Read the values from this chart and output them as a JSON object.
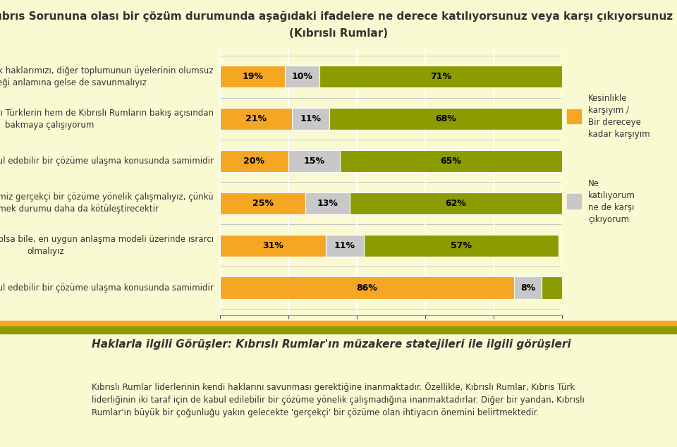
{
  "title_line1": "Kıbrıs Sorununa olası bir çözüm durumunda aşağıdaki ifadelere ne derece katılıyorsunuz veya karşı çıkıyorsunuz  ?",
  "title_line2": "(Kıbrıslı Rumlar)",
  "background_color": "#FAFAD2",
  "chart_background": "#FAFAD2",
  "bar_labels": [
    "Kıbrıs Rum toplumu olarak haklarımızı, diğer toplumunun üyelerinin olumsuz\netkileneceği anlamına gelse de savunmalıyız",
    "Kıbrıs Sorununa hem Kıbrıslı Türklerin hem de Kıbrıslı Rumların bakış açısından\nbakmaya çalışıyorum",
    "Toplum liderimiz karşılıklı kabul edebilir bir çözüme ulaşma konusunda samimidir",
    "Erken zamanda ulaşabileceğimiz gerçekçi bir çözüme yönelik çalışmalıyız, çünkü\nçözümü geciktirmek durumu daha da kötüleştirecektir",
    "Ulaşılması uzun yıllar alacak olsa bile, en uygun anlaşma modeli üzerinde ısrarcı\nolmalıyız",
    "Kıbrıslı Türk  lideri karşılıklı kabul edebilir bir çözüme ulaşma konusunda samimidir"
  ],
  "seg1_vals": [
    19,
    21,
    20,
    25,
    31,
    86
  ],
  "seg2_vals": [
    10,
    11,
    15,
    13,
    11,
    8
  ],
  "seg3_vals": [
    71,
    68,
    65,
    62,
    57,
    6
  ],
  "seg1_color": "#F5A623",
  "seg2_color": "#C8C8C8",
  "seg3_color": "#8B9B00",
  "seg1_label": "Kesinlikle\nkarşıyım /\nBir dereceye\nkadar karşıyım",
  "seg2_label": "Ne\nkatılıyorum\nne de karşı\nçıkıyorum",
  "bottom_title": "Haklarla ilgili Görüşler: Kıbrıslı Rumlar'ın müzakere statejileri ile ilgili görüşleri",
  "bottom_text": "Kıbrıslı Rumlar liderlerinin kendi haklarını savunması gerektiğine inanmaktadır. Özellikle, Kıbrıslı Rumlar, Kıbrıs Türk\nliderliğinin iki taraf için de kabul edilebilir bir çözüme yönelik çalışmadığına inanmaktadırlar. Diğer bir yandan, Kıbrıslı\nRumlar'ın büyük bir çoğunluğu yakın gelecekte 'gerçekçi' bir çözüme olan ihtiyacın önemini belirtmektedir.",
  "orange_stripe_color": "#F5A623",
  "green_stripe_color": "#8B9B00",
  "grid_color": "#FFFFFF",
  "axis_label_color": "#555555",
  "text_color_dark": "#333333",
  "bar_height": 0.52,
  "title_fontsize": 11,
  "label_fontsize": 8.5,
  "value_fontsize": 9,
  "legend_fontsize": 8.5
}
